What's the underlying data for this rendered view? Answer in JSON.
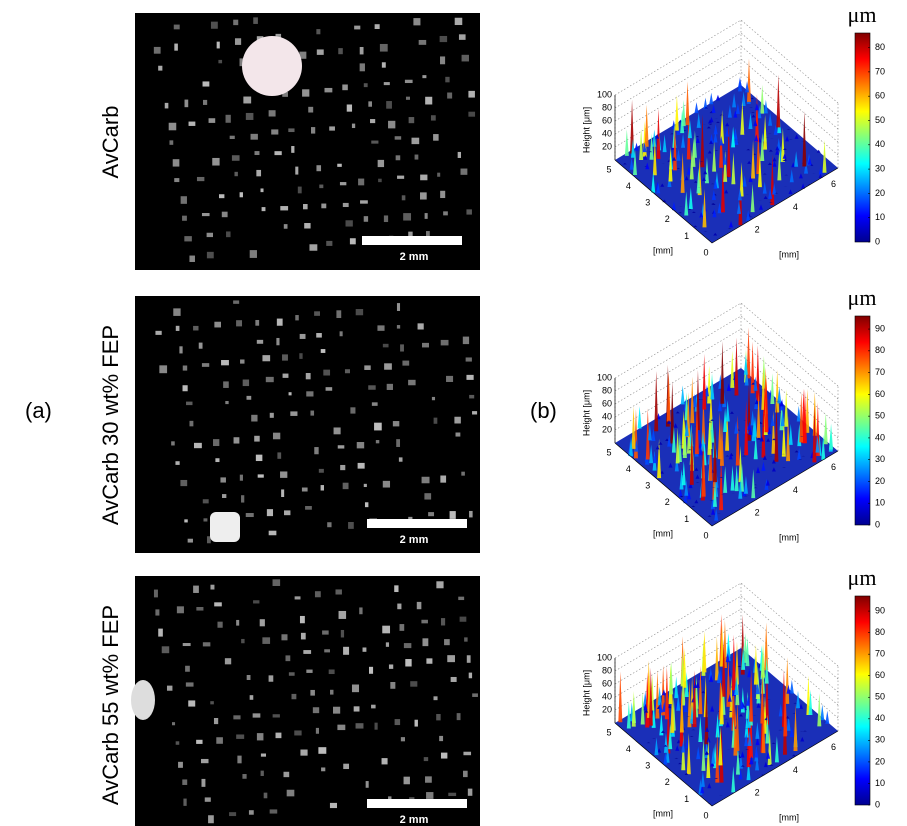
{
  "panel_labels": {
    "a": "(a)",
    "b": "(b)"
  },
  "rows": [
    {
      "label": "AvCarb",
      "scale_bar": "2 mm",
      "plot": {
        "z_label": "Height [μm]",
        "z_ticks": [
          20,
          40,
          60,
          80,
          100
        ],
        "z_lim": [
          0,
          100
        ],
        "y_label": "[mm]",
        "y_ticks": [
          0,
          1,
          2,
          3,
          4,
          5
        ],
        "y_lim": [
          0,
          5
        ],
        "x_label": "[mm]",
        "x_ticks": [
          2,
          4,
          6
        ],
        "x_lim": [
          0,
          6.6
        ],
        "colorbar": {
          "unit": "μm",
          "ticks": [
            0,
            10,
            20,
            30,
            40,
            50,
            60,
            70,
            80
          ],
          "clim": [
            0,
            86
          ]
        }
      }
    },
    {
      "label": "AvCarb 30 wt% FEP",
      "scale_bar": "2 mm",
      "plot": {
        "z_label": "Height [μm]",
        "z_ticks": [
          20,
          40,
          60,
          80,
          100
        ],
        "z_lim": [
          0,
          100
        ],
        "y_label": "[mm]",
        "y_ticks": [
          0,
          1,
          2,
          3,
          4,
          5
        ],
        "y_lim": [
          0,
          5
        ],
        "x_label": "[mm]",
        "x_ticks": [
          2,
          4,
          6
        ],
        "x_lim": [
          0,
          6.6
        ],
        "colorbar": {
          "unit": "μm",
          "ticks": [
            0,
            10,
            20,
            30,
            40,
            50,
            60,
            70,
            80,
            90
          ],
          "clim": [
            0,
            96
          ]
        }
      }
    },
    {
      "label": "AvCarb 55 wt% FEP",
      "scale_bar": "2 mm",
      "plot": {
        "z_label": "Height [μm]",
        "z_ticks": [
          20,
          40,
          60,
          80,
          100
        ],
        "z_lim": [
          0,
          100
        ],
        "y_label": "[mm]",
        "y_ticks": [
          0,
          1,
          2,
          3,
          4,
          5
        ],
        "y_lim": [
          0,
          5
        ],
        "x_label": "[mm]",
        "x_ticks": [
          2,
          4,
          6
        ],
        "x_lim": [
          0,
          6.6
        ],
        "colorbar": {
          "unit": "μm",
          "ticks": [
            0,
            10,
            20,
            30,
            40,
            50,
            60,
            70,
            80,
            90
          ],
          "clim": [
            0,
            97
          ]
        }
      }
    }
  ]
}
